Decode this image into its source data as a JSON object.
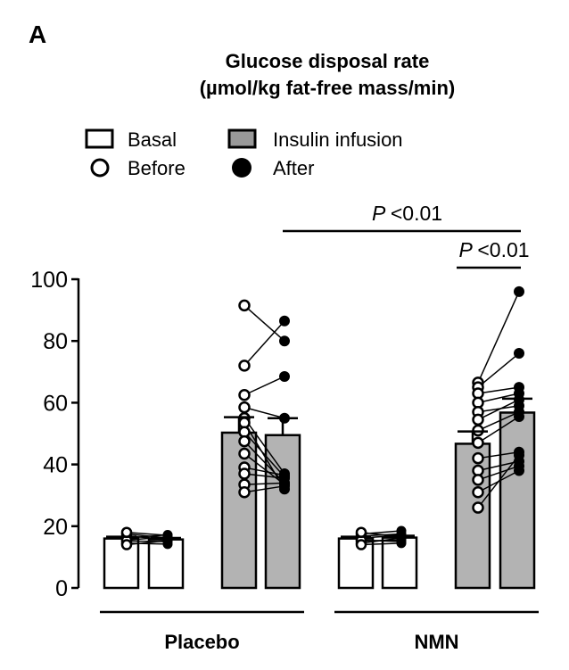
{
  "panel_label": "A",
  "chart_data": {
    "type": "bar",
    "title": "Glucose disposal rate",
    "subtitle": "(µmol/kg fat-free mass/min)",
    "ylim": [
      0,
      100
    ],
    "yticks": [
      0,
      20,
      40,
      60,
      80,
      100
    ],
    "legend": {
      "placement": "top-left",
      "entries": [
        {
          "label": "Basal",
          "marker": "open-box"
        },
        {
          "label": "Insulin infusion",
          "marker": "grey-box"
        },
        {
          "label": "Before",
          "marker": "open-circle"
        },
        {
          "label": "After",
          "marker": "filled-circle"
        }
      ]
    },
    "groups": [
      {
        "name": "Placebo",
        "bars": [
          {
            "condition": "Basal",
            "time": "Before",
            "mean": 16,
            "sem": 0.6
          },
          {
            "condition": "Basal",
            "time": "After",
            "mean": 15.7,
            "sem": 0.5
          },
          {
            "condition": "Insulin infusion",
            "time": "Before",
            "mean": 50.3,
            "sem": 5
          },
          {
            "condition": "Insulin infusion",
            "time": "After",
            "mean": 49.5,
            "sem": 5.5
          }
        ],
        "basal_pairs": [
          [
            17.5,
            16.2
          ],
          [
            16.2,
            17.2
          ],
          [
            15.2,
            15.0
          ],
          [
            14.5,
            14.2
          ],
          [
            16.8,
            15.8
          ],
          [
            15.5,
            16.5
          ],
          [
            14.0,
            15.3
          ],
          [
            18.0,
            17.0
          ]
        ],
        "insulin_pairs": [
          [
            91.5,
            80
          ],
          [
            72,
            86.5
          ],
          [
            62.5,
            68.5
          ],
          [
            58.5,
            55
          ],
          [
            55,
            37
          ],
          [
            53.5,
            32
          ],
          [
            50.5,
            36
          ],
          [
            47.5,
            34
          ],
          [
            43.5,
            33.5
          ],
          [
            39,
            36.5
          ],
          [
            37,
            35.5
          ],
          [
            33.5,
            34
          ],
          [
            31,
            33
          ]
        ]
      },
      {
        "name": "NMN",
        "bars": [
          {
            "condition": "Basal",
            "time": "Before",
            "mean": 16,
            "sem": 0.6
          },
          {
            "condition": "Basal",
            "time": "After",
            "mean": 16.3,
            "sem": 0.6
          },
          {
            "condition": "Insulin infusion",
            "time": "Before",
            "mean": 46.7,
            "sem": 4
          },
          {
            "condition": "Insulin infusion",
            "time": "After",
            "mean": 56.8,
            "sem": 4.5
          }
        ],
        "basal_pairs": [
          [
            17.5,
            18.5
          ],
          [
            16.2,
            17.0
          ],
          [
            15.2,
            15.5
          ],
          [
            14.5,
            16.2
          ],
          [
            16.8,
            17.5
          ],
          [
            15.5,
            15.0
          ],
          [
            14.0,
            14.5
          ],
          [
            18.0,
            16.5
          ]
        ],
        "insulin_pairs": [
          [
            66.5,
            96
          ],
          [
            65,
            76
          ],
          [
            63,
            65
          ],
          [
            60,
            63
          ],
          [
            57,
            59
          ],
          [
            54.5,
            61
          ],
          [
            51,
            57
          ],
          [
            47,
            55.5
          ],
          [
            42,
            44
          ],
          [
            38,
            41
          ],
          [
            35,
            39.5
          ],
          [
            31,
            38
          ],
          [
            26,
            43
          ]
        ]
      }
    ],
    "annotations": [
      {
        "label_italic": "P",
        "label": "<0.01",
        "from_bar": 3,
        "to_bar": 7,
        "level": 1
      },
      {
        "label_italic": "P",
        "label": "<0.01",
        "from_bar": 6,
        "to_bar": 7,
        "level": 2
      }
    ]
  }
}
